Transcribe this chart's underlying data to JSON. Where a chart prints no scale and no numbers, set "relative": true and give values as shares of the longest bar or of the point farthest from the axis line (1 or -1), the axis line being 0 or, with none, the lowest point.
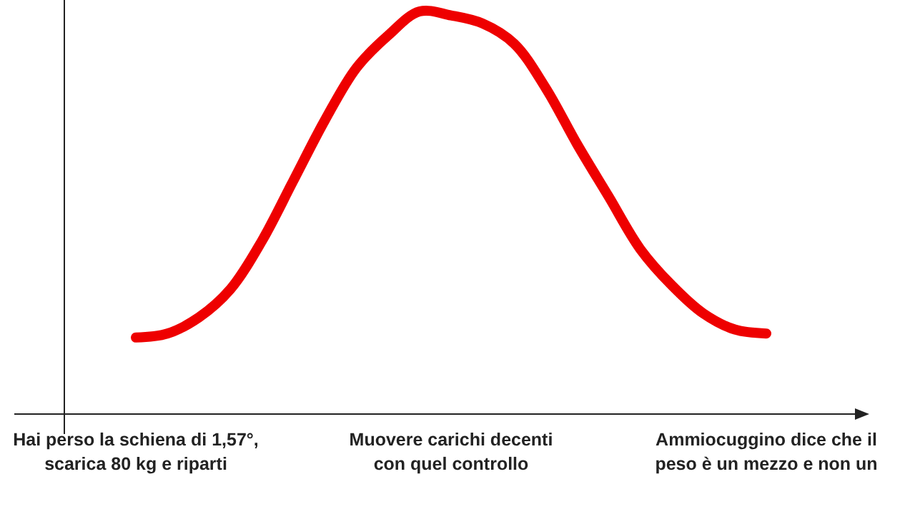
{
  "chart_data": {
    "type": "line",
    "relative": true,
    "categories": [
      "Hai perso la schiena di 1,57°, scarica 80 kg e riparti",
      null,
      null,
      null,
      null,
      null,
      null,
      null,
      null,
      null,
      "Muovere carichi decenti con quel controllo",
      null,
      null,
      null,
      null,
      null,
      null,
      null,
      null,
      null,
      "Ammiocuggino dice che il peso è un mezzo e non un"
    ],
    "series": [
      {
        "color": "#ee0000",
        "values": [
          0.19,
          0.2,
          0.24,
          0.31,
          0.43,
          0.58,
          0.73,
          0.86,
          0.94,
          1,
          0.99,
          0.97,
          0.92,
          0.81,
          0.67,
          0.54,
          0.41,
          0.32,
          0.25,
          0.21,
          0.2
        ]
      }
    ]
  }
}
